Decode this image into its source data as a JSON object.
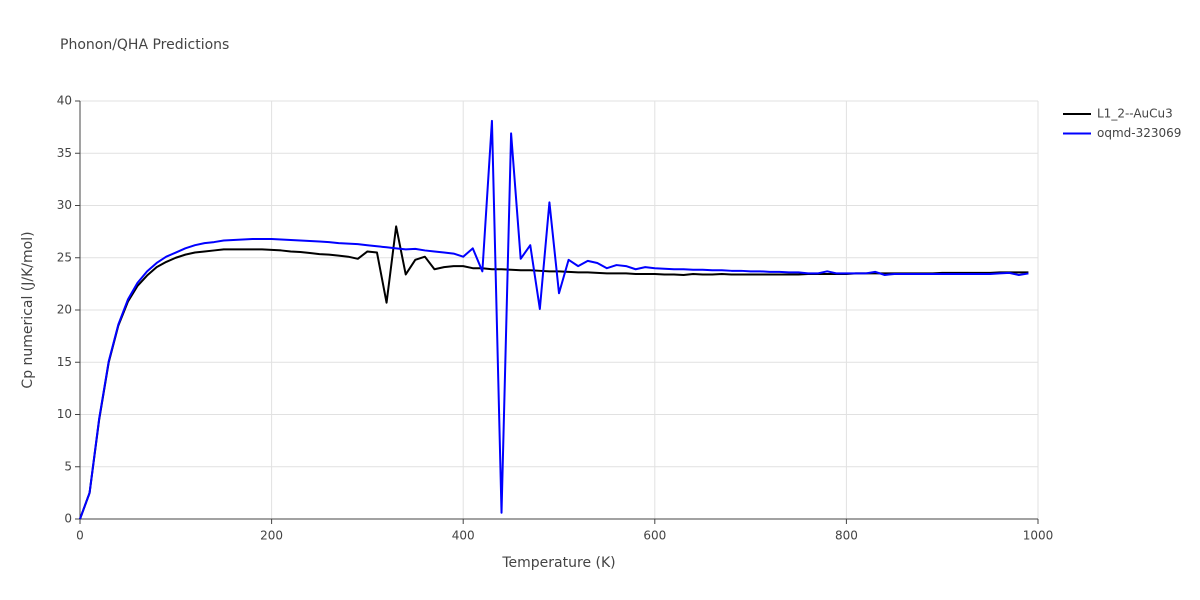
{
  "chart_data": {
    "type": "line",
    "title": "Phonon/QHA Predictions",
    "x_label": "Temperature (K)",
    "y_label": "Cp numerical (J/K/mol)",
    "x": [
      0,
      10,
      20,
      30,
      40,
      50,
      60,
      70,
      80,
      90,
      100,
      110,
      120,
      130,
      140,
      150,
      160,
      170,
      180,
      190,
      200,
      210,
      220,
      230,
      240,
      250,
      260,
      270,
      280,
      290,
      300,
      310,
      320,
      330,
      340,
      350,
      360,
      370,
      380,
      390,
      400,
      410,
      420,
      430,
      440,
      450,
      460,
      470,
      480,
      490,
      500,
      510,
      520,
      530,
      540,
      550,
      560,
      570,
      580,
      590,
      600,
      610,
      620,
      630,
      640,
      650,
      660,
      670,
      680,
      690,
      700,
      710,
      720,
      730,
      740,
      750,
      760,
      770,
      780,
      790,
      800,
      810,
      820,
      830,
      840,
      850,
      860,
      870,
      880,
      890,
      900,
      910,
      920,
      930,
      940,
      950,
      960,
      970,
      980,
      990
    ],
    "series": [
      {
        "name": "L1_2--AuCu3",
        "color": "#000000",
        "values": [
          0,
          2.5,
          9.5,
          15,
          18.5,
          20.8,
          22.3,
          23.3,
          24.1,
          24.6,
          25.0,
          25.3,
          25.5,
          25.6,
          25.7,
          25.8,
          25.8,
          25.8,
          25.8,
          25.8,
          25.75,
          25.7,
          25.6,
          25.55,
          25.45,
          25.35,
          25.3,
          25.2,
          25.1,
          24.9,
          25.6,
          25.5,
          20.7,
          28.0,
          23.4,
          24.8,
          25.1,
          23.9,
          24.1,
          24.2,
          24.2,
          24.0,
          24.0,
          23.9,
          23.9,
          23.85,
          23.8,
          23.8,
          23.75,
          23.7,
          23.7,
          23.65,
          23.6,
          23.6,
          23.55,
          23.5,
          23.5,
          23.5,
          23.45,
          23.45,
          23.45,
          23.4,
          23.4,
          23.35,
          23.45,
          23.4,
          23.4,
          23.45,
          23.4,
          23.4,
          23.4,
          23.4,
          23.4,
          23.4,
          23.4,
          23.4,
          23.45,
          23.45,
          23.45,
          23.45,
          23.45,
          23.5,
          23.5,
          23.5,
          23.5,
          23.5,
          23.5,
          23.5,
          23.5,
          23.5,
          23.55,
          23.55,
          23.55,
          23.55,
          23.55,
          23.55,
          23.6,
          23.6,
          23.6,
          23.6
        ]
      },
      {
        "name": "oqmd-323069",
        "color": "#0000ff",
        "values": [
          0,
          2.5,
          9.6,
          15.1,
          18.6,
          21,
          22.6,
          23.7,
          24.5,
          25.1,
          25.5,
          25.9,
          26.2,
          26.4,
          26.5,
          26.65,
          26.7,
          26.75,
          26.8,
          26.8,
          26.8,
          26.75,
          26.7,
          26.65,
          26.6,
          26.55,
          26.5,
          26.4,
          26.35,
          26.3,
          26.2,
          26.1,
          26.0,
          25.9,
          25.8,
          25.85,
          25.7,
          25.6,
          25.5,
          25.4,
          25.1,
          25.9,
          23.7,
          38.1,
          0.6,
          36.9,
          24.9,
          26.2,
          20.1,
          30.3,
          21.6,
          24.8,
          24.2,
          24.7,
          24.5,
          24.0,
          24.3,
          24.2,
          23.9,
          24.1,
          24.0,
          23.95,
          23.9,
          23.9,
          23.85,
          23.85,
          23.8,
          23.8,
          23.75,
          23.75,
          23.7,
          23.7,
          23.65,
          23.65,
          23.6,
          23.6,
          23.5,
          23.5,
          23.7,
          23.5,
          23.5,
          23.5,
          23.5,
          23.65,
          23.35,
          23.45,
          23.45,
          23.45,
          23.45,
          23.45,
          23.45,
          23.45,
          23.45,
          23.45,
          23.45,
          23.45,
          23.5,
          23.55,
          23.35,
          23.5
        ]
      }
    ],
    "xlim": [
      0,
      1000
    ],
    "xticks": [
      0,
      200,
      400,
      600,
      800,
      1000
    ],
    "ylim": [
      0,
      40
    ],
    "yticks": [
      0,
      5,
      10,
      15,
      20,
      25,
      30,
      35,
      40
    ],
    "grid": true,
    "legend": "top-right"
  }
}
